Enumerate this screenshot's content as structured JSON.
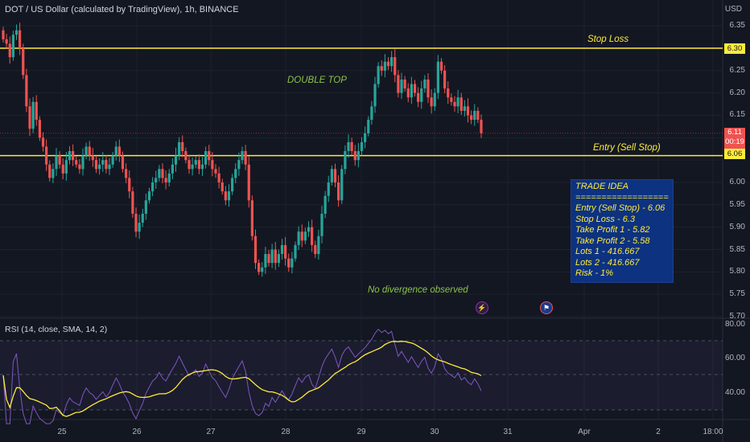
{
  "chart_title": "DOT / US Dollar (calculated by TradingView), 1h, BINANCE",
  "currency": "USD",
  "price_axis": [
    "6.35",
    "6.30",
    "6.25",
    "6.20",
    "6.15",
    "6.10",
    "6.05",
    "6.00",
    "5.95",
    "5.90",
    "5.85",
    "5.80",
    "5.75",
    "5.70"
  ],
  "price_tags": {
    "stop_loss": "6.30",
    "current": "6.11",
    "countdown": "00:19",
    "entry": "6.06"
  },
  "time_axis": [
    "25",
    "26",
    "27",
    "28",
    "29",
    "30",
    "31",
    "Apr",
    "2",
    "18:00"
  ],
  "annotations": {
    "stop_loss": "Stop Loss",
    "entry": "Entry (Sell Stop)",
    "pattern": "DOUBLE TOP",
    "divergence": "No divergence observed"
  },
  "trade_idea": {
    "title": "TRADE IDEA",
    "separator": "=========================",
    "lines": [
      "Entry (Sell Stop) - 6.06",
      "Stop Loss - 6.3",
      "Take Profit 1 -  5.82",
      "Take Profit 2  - 5.58",
      "Lots 1 - 416.667",
      "Lots 2 - 416.667",
      "Risk - 1%"
    ]
  },
  "rsi": {
    "title": "RSI (14, close, SMA, 14, 2)",
    "levels": [
      "80.00",
      "60.00",
      "40.00"
    ]
  },
  "colors": {
    "bg": "#131722",
    "up": "#26a69a",
    "down": "#ef5350",
    "level": "#ffeb3b",
    "rsi": "#7e57c2",
    "rsi_ma": "#ffeb3b",
    "text_green": "#8bc34a"
  },
  "icons": {
    "flash": "lightning-icon",
    "flag": "us-flag-icon"
  },
  "chart_data": {
    "type": "candlestick",
    "title": "DOT / US Dollar (calculated by TradingView), 1h, BINANCE",
    "ylim": [
      5.68,
      6.37
    ],
    "levels": {
      "stop_loss": 6.3,
      "entry": 6.06
    },
    "close": [
      6.32,
      6.31,
      6.28,
      6.33,
      6.34,
      6.3,
      6.24,
      6.17,
      6.12,
      6.18,
      6.14,
      6.1,
      6.08,
      6.04,
      6.01,
      6.03,
      6.06,
      6.04,
      6.02,
      6.05,
      6.07,
      6.05,
      6.04,
      6.03,
      6.06,
      6.08,
      6.06,
      6.05,
      6.03,
      6.04,
      6.05,
      6.03,
      6.04,
      6.06,
      6.08,
      6.06,
      6.03,
      6.01,
      5.98,
      5.93,
      5.89,
      5.91,
      5.93,
      5.96,
      5.98,
      6.0,
      6.01,
      6.03,
      6.01,
      6.0,
      6.02,
      6.04,
      6.06,
      6.09,
      6.07,
      6.05,
      6.03,
      6.04,
      6.05,
      6.03,
      6.04,
      6.07,
      6.05,
      6.03,
      6.02,
      6.0,
      5.98,
      5.96,
      5.98,
      6.01,
      6.03,
      6.05,
      6.07,
      6.04,
      5.96,
      5.88,
      5.82,
      5.8,
      5.81,
      5.84,
      5.82,
      5.85,
      5.82,
      5.84,
      5.86,
      5.83,
      5.81,
      5.83,
      5.86,
      5.89,
      5.87,
      5.89,
      5.9,
      5.86,
      5.84,
      5.88,
      5.93,
      5.97,
      6.0,
      6.03,
      6.0,
      5.96,
      6.03,
      6.07,
      6.09,
      6.07,
      6.05,
      6.07,
      6.09,
      6.11,
      6.14,
      6.17,
      6.22,
      6.26,
      6.25,
      6.27,
      6.26,
      6.28,
      6.24,
      6.2,
      6.23,
      6.21,
      6.19,
      6.22,
      6.2,
      6.18,
      6.21,
      6.23,
      6.19,
      6.17,
      6.2,
      6.27,
      6.25,
      6.21,
      6.19,
      6.18,
      6.17,
      6.19,
      6.16,
      6.17,
      6.15,
      6.14,
      6.16,
      6.14,
      6.11
    ]
  }
}
